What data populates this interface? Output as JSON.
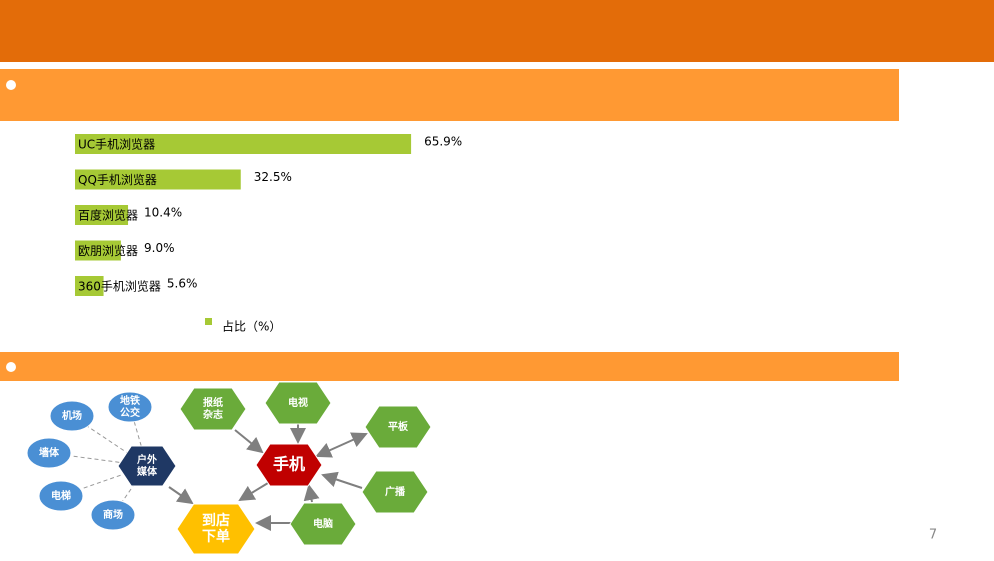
{
  "chart_data": {
    "type": "bar",
    "orientation": "horizontal",
    "categories": [
      "UC手机浏览器",
      "QQ手机浏览器",
      "百度浏览器",
      "欧朋浏览器",
      "360手机浏览器"
    ],
    "series": [
      {
        "name": "占比（%）",
        "color": "#a6c935",
        "values": [
          65.9,
          32.5,
          10.4,
          9.0,
          5.6
        ],
        "value_labels": [
          "65.9%",
          "32.5%",
          "10.4%",
          "9.0%",
          "5.6%"
        ]
      }
    ],
    "legend": "bottom"
  },
  "diagram": {
    "nodes": [
      {
        "lines": [
          "机场"
        ]
      },
      {
        "lines": [
          "地铁",
          "公交"
        ]
      },
      {
        "lines": [
          "墙体"
        ]
      },
      {
        "lines": [
          "户外",
          "媒体"
        ]
      },
      {
        "lines": [
          "电梯"
        ]
      },
      {
        "lines": [
          "商场"
        ]
      },
      {
        "lines": [
          "到店",
          "下单"
        ]
      },
      {
        "lines": [
          "报纸",
          "杂志"
        ]
      },
      {
        "lines": [
          "电视"
        ]
      },
      {
        "lines": [
          "手机"
        ]
      },
      {
        "lines": [
          "平板"
        ]
      },
      {
        "lines": [
          "广播"
        ]
      },
      {
        "lines": [
          "电脑"
        ]
      }
    ]
  },
  "page_number": "7"
}
